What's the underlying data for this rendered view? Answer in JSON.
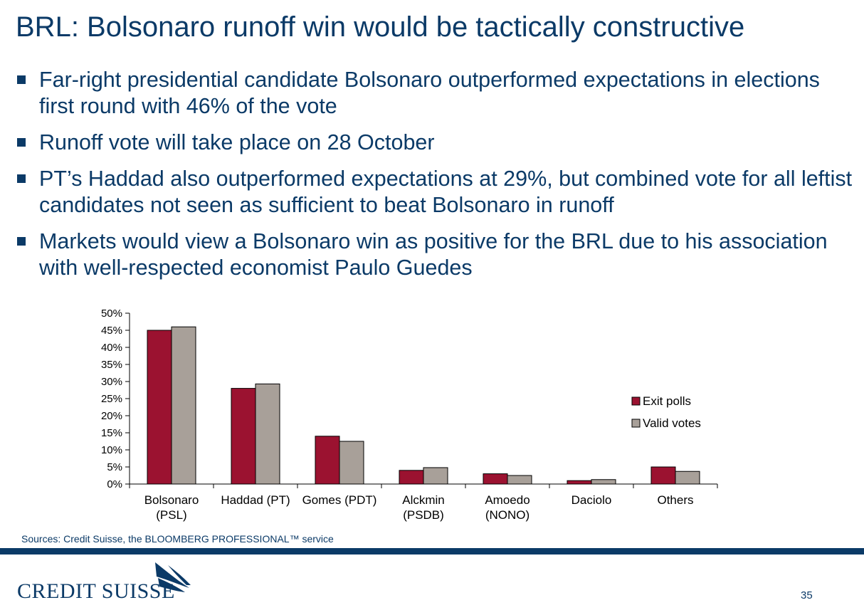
{
  "title": "BRL: Bolsonaro runoff win would be tactically constructive",
  "bullets": [
    "Far-right presidential candidate Bolsonaro outperformed expectations in elections first round with 46% of the vote",
    "Runoff vote will take place on 28 October",
    "PT’s Haddad also outperformed expectations at 29%, but combined vote for all leftist candidates not seen as sufficient to beat Bolsonaro in runoff",
    "Markets would view a Bolsonaro win as positive for the BRL due to his association with well-respected economist Paulo Guedes"
  ],
  "chart_data": {
    "type": "bar",
    "categories": [
      [
        "Bolsonaro",
        "(PSL)"
      ],
      [
        "Haddad (PT)"
      ],
      [
        "Gomes (PDT)"
      ],
      [
        "Alckmin",
        "(PSDB)"
      ],
      [
        "Amoedo",
        "(NONO)"
      ],
      [
        "Daciolo"
      ],
      [
        "Others"
      ]
    ],
    "series": [
      {
        "name": "Exit polls",
        "color": "#9b1230",
        "values": [
          45,
          28,
          14,
          4,
          3,
          1,
          5
        ]
      },
      {
        "name": "Valid votes",
        "color": "#a8a099",
        "values": [
          46,
          29.3,
          12.5,
          4.8,
          2.5,
          1.3,
          3.7
        ]
      }
    ],
    "ylim": [
      0,
      50
    ],
    "yticks": [
      "0%",
      "5%",
      "10%",
      "15%",
      "20%",
      "25%",
      "30%",
      "35%",
      "40%",
      "45%",
      "50%"
    ],
    "legend_position": "right",
    "grid": false
  },
  "sources": "Sources: Credit Suisse, the BLOOMBERG PROFESSIONAL™ service",
  "logo": {
    "text": "CREDIT SUISSE",
    "color": "#0b3a67"
  },
  "page_number": "35"
}
